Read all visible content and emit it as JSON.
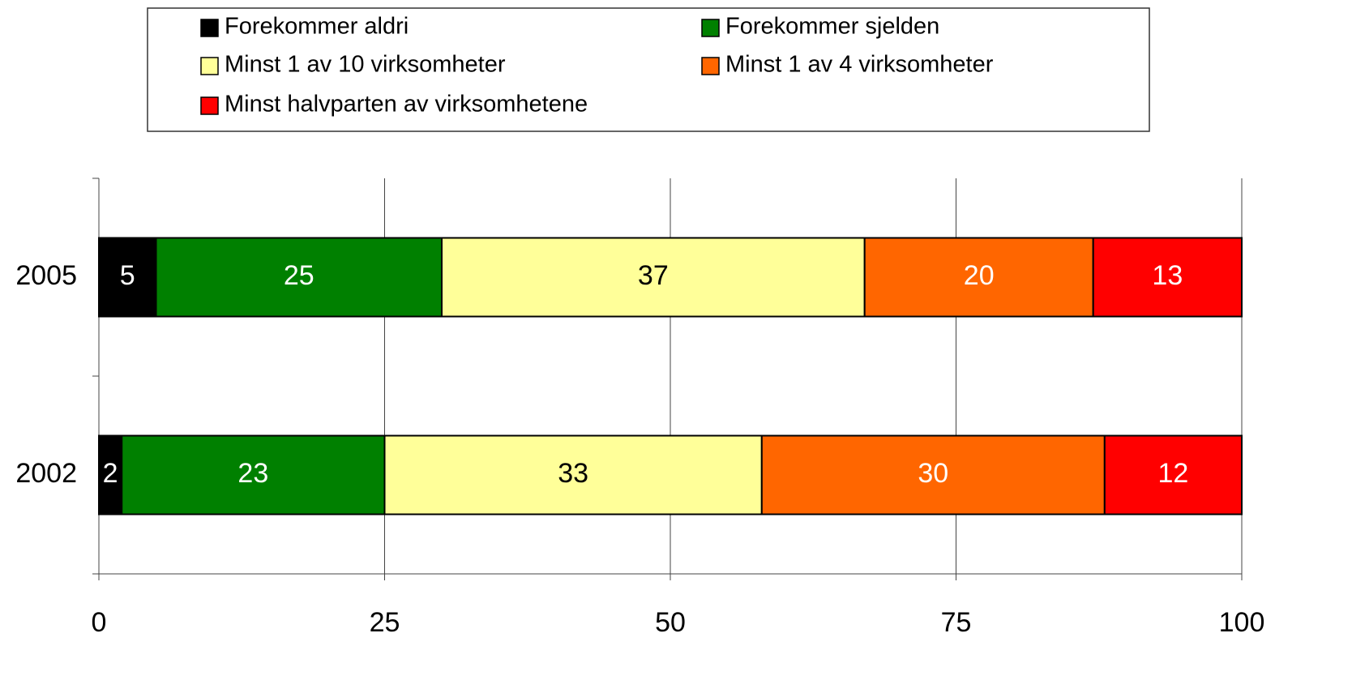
{
  "chart_data": {
    "type": "stacked_barh",
    "categories": [
      "2005",
      "2002"
    ],
    "series": [
      {
        "name": "Forekommer aldri",
        "color": "#000000",
        "label_color": "#ffffff",
        "values": [
          5,
          2
        ]
      },
      {
        "name": "Forekommer sjelden",
        "color": "#008000",
        "label_color": "#ffffff",
        "values": [
          25,
          23
        ]
      },
      {
        "name": "Minst 1 av 10 virksomheter",
        "color": "#ffff99",
        "label_color": "#000000",
        "values": [
          37,
          33
        ]
      },
      {
        "name": "Minst 1 av 4 virksomheter",
        "color": "#ff6600",
        "label_color": "#ffffff",
        "values": [
          20,
          30
        ]
      },
      {
        "name": "Minst halvparten av virksomhetene",
        "color": "#ff0000",
        "label_color": "#ffffff",
        "values": [
          13,
          12
        ]
      }
    ],
    "xlim": [
      0,
      100
    ],
    "xticks": [
      0,
      25,
      50,
      75,
      100
    ],
    "grid": true,
    "legend": "top"
  }
}
